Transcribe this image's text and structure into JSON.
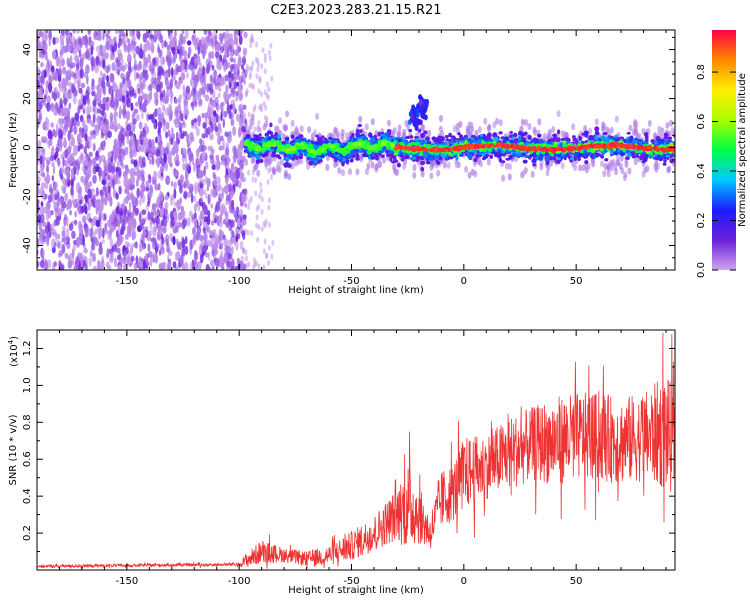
{
  "title": "C2E3.2023.283.21.15.R21",
  "chart_data": [
    {
      "type": "heatmap",
      "xlabel": "Height of straight line (km)",
      "ylabel": "Frequency (Hz)",
      "xlim": [
        -190,
        94
      ],
      "ylim": [
        -50,
        48
      ],
      "xticks": [
        -150,
        -100,
        -50,
        0,
        50
      ],
      "yticks": [
        -40,
        -20,
        0,
        20,
        40
      ],
      "colorbar": {
        "label": "Normalized spectral amplitude",
        "range": [
          0,
          0.97
        ],
        "ticks": [
          "0.0",
          "0.2",
          "0.4",
          "0.6",
          "0.8"
        ],
        "colors": [
          "#cfa6ec",
          "#6a1fdc",
          "#1b1bff",
          "#00c8ff",
          "#00ff44",
          "#aaff00",
          "#ffee00",
          "#ff8800",
          "#ff0044"
        ]
      },
      "regions": [
        {
          "x_range": [
            -190,
            -97
          ],
          "freq_range": [
            -50,
            48
          ],
          "amplitude": [
            0.0,
            0.12
          ]
        },
        {
          "x_range": [
            -97,
            94
          ],
          "freq_range": [
            -8,
            8
          ],
          "peak_freq": 0,
          "amplitude": [
            0.1,
            0.95
          ]
        }
      ],
      "annotations": [
        {
          "x": -22,
          "freq": 12,
          "amplitude": 0.2
        },
        {
          "x": -18,
          "freq": 16,
          "amplitude": 0.2
        }
      ]
    },
    {
      "type": "line",
      "xlabel": "Height of straight line (km)",
      "ylabel": "SNR (10 * v/v)",
      "y_multiplier": "(x10",
      "y_multiplier_exp": "4",
      "y_multiplier_close": ")",
      "xlim": [
        -190,
        94
      ],
      "ylim": [
        0,
        1.3
      ],
      "xticks": [
        -150,
        -100,
        -50,
        0,
        50
      ],
      "yticks": [
        "0.2",
        "0.4",
        "0.6",
        "0.8",
        "1.0",
        "1.2"
      ],
      "color": "#ee3333",
      "envelope": {
        "x": [
          -190,
          -100,
          -97,
          -90,
          -80,
          -70,
          -60,
          -50,
          -40,
          -30,
          -25,
          -20,
          -15,
          -10,
          -5,
          0,
          10,
          20,
          30,
          40,
          50,
          60,
          70,
          80,
          90,
          94
        ],
        "mean": [
          0.02,
          0.03,
          0.05,
          0.1,
          0.08,
          0.06,
          0.08,
          0.13,
          0.2,
          0.3,
          0.35,
          0.3,
          0.2,
          0.38,
          0.42,
          0.52,
          0.56,
          0.63,
          0.68,
          0.7,
          0.72,
          0.72,
          0.7,
          0.72,
          0.75,
          0.68
        ],
        "spread": [
          0.01,
          0.01,
          0.05,
          0.08,
          0.05,
          0.05,
          0.07,
          0.1,
          0.12,
          0.18,
          0.3,
          0.2,
          0.12,
          0.2,
          0.2,
          0.25,
          0.22,
          0.25,
          0.25,
          0.3,
          0.3,
          0.3,
          0.3,
          0.3,
          0.4,
          0.35
        ]
      }
    }
  ]
}
